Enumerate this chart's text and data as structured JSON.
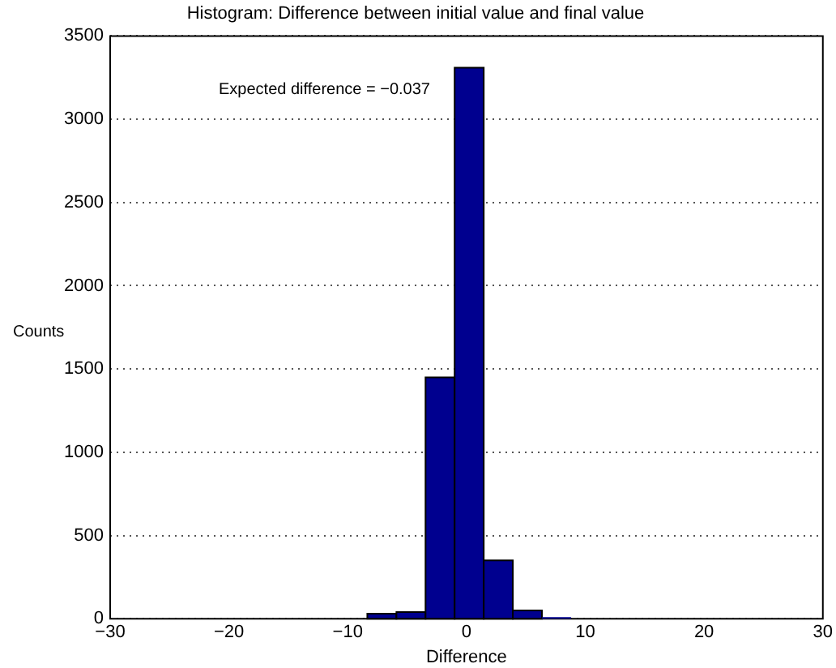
{
  "chart_data": {
    "type": "histogram",
    "title": "Histogram: Difference between initial value and final value",
    "xlabel": "Difference",
    "ylabel": "Counts",
    "bins": [
      -25.5,
      -23.05,
      -20.6,
      -18.15,
      -15.7,
      -13.25,
      -10.8,
      -8.35,
      -5.9,
      -3.45,
      -1.0,
      1.45,
      3.9,
      6.35,
      8.8,
      11.25,
      13.7,
      16.15,
      18.6,
      21.05,
      23.5,
      25.95
    ],
    "values": [
      0,
      0,
      0,
      0,
      0,
      0,
      0,
      30,
      40,
      1450,
      3310,
      350,
      50,
      10,
      0,
      0,
      0,
      0,
      0,
      0,
      0
    ],
    "color": "#00008f",
    "xlim": [
      -30,
      30
    ],
    "xticks": [
      -30,
      -20,
      -10,
      0,
      10,
      20,
      30
    ],
    "ylim": [
      0,
      3500
    ],
    "yticks": [
      0,
      500,
      1000,
      1500,
      2000,
      2500,
      3000,
      3500
    ],
    "grid": "y",
    "annotations": [
      "Expected difference = −0.037"
    ]
  }
}
